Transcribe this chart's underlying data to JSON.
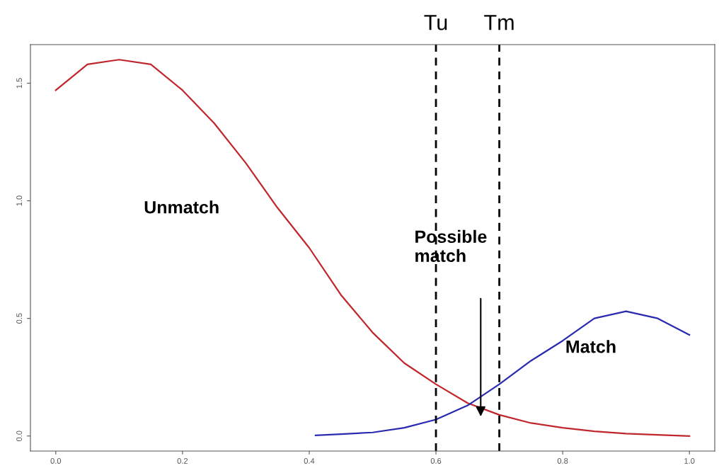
{
  "chart_data": {
    "type": "line",
    "xlim": [
      -0.04,
      1.04
    ],
    "ylim": [
      -0.064,
      1.664
    ],
    "xticks": [
      {
        "value": 0,
        "label": "0.0"
      },
      0.2,
      0.4,
      0.6,
      0.8,
      {
        "value": 1,
        "label": "1.0"
      }
    ],
    "yticks": [
      {
        "value": 0,
        "label": "0.0"
      },
      0.5,
      {
        "value": 1,
        "label": "1.0"
      },
      1.5
    ],
    "grid": false,
    "legend": false,
    "marker": "none",
    "line_style": "solid",
    "series": [
      {
        "color": "#c0272d",
        "x": [
          0,
          0.05,
          0.1,
          0.15,
          0.2,
          0.25,
          0.3,
          0.35,
          0.4,
          0.45,
          0.5,
          0.55,
          0.6,
          0.65,
          0.7,
          0.75,
          0.8,
          0.85,
          0.9,
          0.95,
          1.0
        ],
        "values": [
          1.47,
          1.58,
          1.6,
          1.58,
          1.47,
          1.33,
          1.16,
          0.97,
          0.8,
          0.6,
          0.44,
          0.31,
          0.22,
          0.14,
          0.09,
          0.055,
          0.035,
          0.02,
          0.01,
          0.005,
          0.0
        ]
      },
      {
        "color": "#2a2ab0",
        "x": [
          0.41,
          0.45,
          0.5,
          0.55,
          0.6,
          0.65,
          0.7,
          0.75,
          0.8,
          0.85,
          0.9,
          0.95,
          1.0
        ],
        "values": [
          0.003,
          0.008,
          0.015,
          0.035,
          0.07,
          0.13,
          0.22,
          0.32,
          0.405,
          0.5,
          0.53,
          0.5,
          0.43
        ]
      }
    ],
    "ref_lines": [
      {
        "axis": "x",
        "value": 0.6,
        "label": "Tu",
        "color": "#000000",
        "line_style": "dashed"
      },
      {
        "axis": "x",
        "value": 0.7,
        "label": "Tm",
        "color": "#000000",
        "line_style": "dashed"
      }
    ],
    "annotations": [
      "Unmatch",
      "Possible\nmatch",
      "Match"
    ]
  }
}
